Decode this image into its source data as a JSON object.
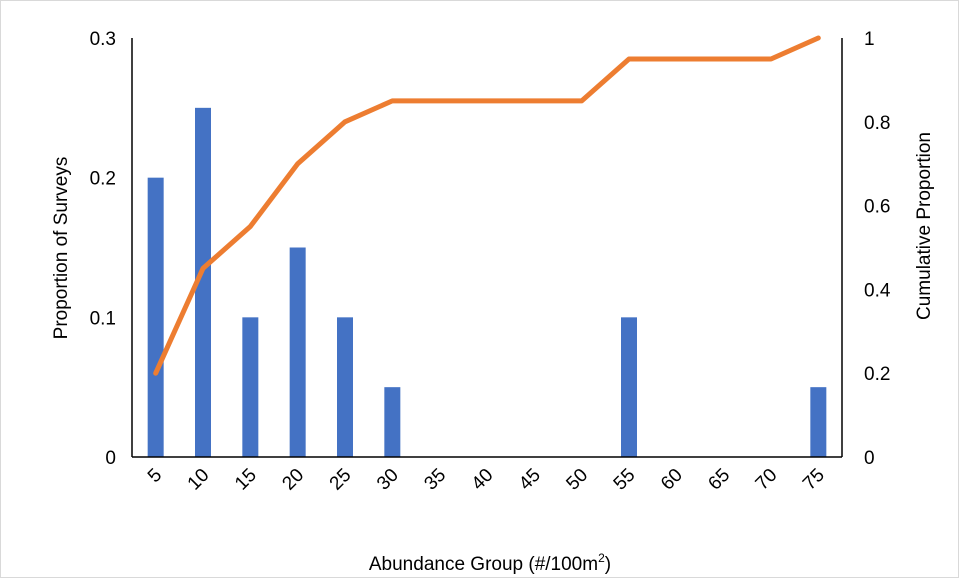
{
  "chart_data": {
    "type": "bar",
    "categories": [
      "5",
      "10",
      "15",
      "20",
      "25",
      "30",
      "35",
      "40",
      "45",
      "50",
      "55",
      "60",
      "65",
      "70",
      "75"
    ],
    "series": [
      {
        "type": "bar",
        "axis": "left",
        "color": "#4472C4",
        "values": [
          0.2,
          0.25,
          0.1,
          0.15,
          0.1,
          0.05,
          0,
          0,
          0,
          0,
          0.1,
          0,
          0,
          0,
          0.05
        ]
      },
      {
        "type": "line",
        "axis": "right",
        "color": "#ED7D31",
        "values": [
          0.2,
          0.45,
          0.55,
          0.7,
          0.8,
          0.85,
          0.85,
          0.85,
          0.85,
          0.85,
          0.95,
          0.95,
          0.95,
          0.95,
          1.0
        ]
      }
    ],
    "xlabel": "Abundance Group (#/100m",
    "xlabel_sup": "2",
    "xlabel_suffix": ")",
    "ylabel": "Proportion of Surveys",
    "y2label": "Cumulative Proportion",
    "ylim": [
      0,
      0.3
    ],
    "y2lim": [
      0,
      1
    ],
    "yticks": [
      "0",
      "0.1",
      "0.2",
      "0.3"
    ],
    "y2ticks": [
      "0",
      "0.2",
      "0.4",
      "0.6",
      "0.8",
      "1"
    ],
    "grid": false,
    "legend": "none"
  }
}
